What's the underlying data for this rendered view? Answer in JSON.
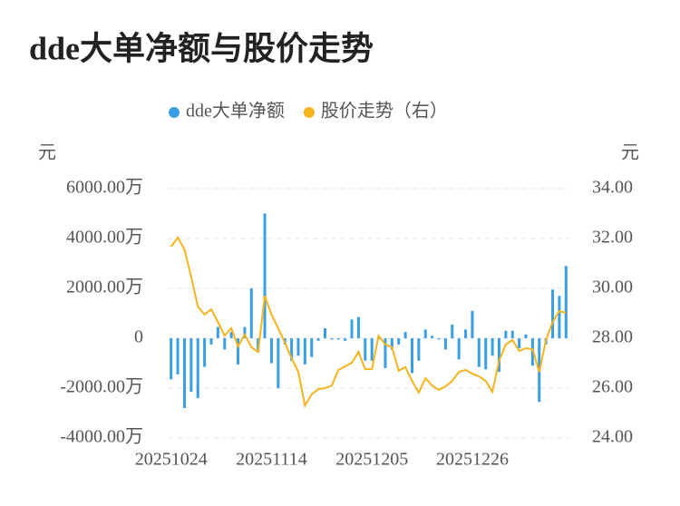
{
  "chart_data": {
    "type": "bar_line",
    "title": "dde大单净额与股价走势",
    "y_label": "元",
    "y2_label": "元",
    "categories": [
      "20251024",
      null,
      null,
      null,
      null,
      null,
      null,
      null,
      null,
      null,
      null,
      null,
      null,
      null,
      null,
      "20251114",
      null,
      null,
      null,
      null,
      null,
      null,
      null,
      null,
      null,
      null,
      null,
      null,
      null,
      null,
      "20251205",
      null,
      null,
      null,
      null,
      null,
      null,
      null,
      null,
      null,
      null,
      null,
      null,
      null,
      null,
      "20251226",
      null,
      null,
      null,
      null,
      null,
      null,
      null,
      null,
      null,
      null,
      null,
      null,
      null,
      null
    ],
    "series": [
      {
        "name": "dde大单净额",
        "color": "#3a9ee4",
        "kind": "bar",
        "axis": "y",
        "values": [
          -1650,
          -1450,
          -2800,
          -2150,
          -2400,
          -1150,
          -250,
          450,
          -450,
          250,
          -1050,
          450,
          2000,
          -550,
          5000,
          -1000,
          -2000,
          -250,
          -900,
          -700,
          -1050,
          -750,
          -100,
          400,
          -50,
          -50,
          -100,
          750,
          850,
          -900,
          -900,
          -50,
          -1200,
          -450,
          -250,
          250,
          -1400,
          -900,
          350,
          100,
          -50,
          -450,
          550,
          -850,
          350,
          1100,
          -1150,
          -1250,
          -700,
          -1350,
          300,
          300,
          -400,
          150,
          -1100,
          -2550,
          -250,
          1950,
          1700,
          2900
        ]
      },
      {
        "name": "股价走势（右）",
        "color": "#f5b31c",
        "kind": "line",
        "axis": "y2",
        "values": [
          31.67,
          32.04,
          31.56,
          30.47,
          29.27,
          28.95,
          29.16,
          28.65,
          28.1,
          28.4,
          27.67,
          28.15,
          27.64,
          27.45,
          29.7,
          28.95,
          28.4,
          27.82,
          27.2,
          26.65,
          25.3,
          25.75,
          25.96,
          26.0,
          26.1,
          26.73,
          26.87,
          27.02,
          27.45,
          26.76,
          26.76,
          28.1,
          27.75,
          27.64,
          26.7,
          26.84,
          26.29,
          25.82,
          26.4,
          26.1,
          25.93,
          26.07,
          26.29,
          26.65,
          26.73,
          26.58,
          26.47,
          26.29,
          25.85,
          27.1,
          27.75,
          27.93,
          27.49,
          27.6,
          27.56,
          26.65,
          27.93,
          28.65,
          29.09,
          29.02
        ]
      }
    ],
    "ylim": [
      -4000,
      6000
    ],
    "yticks": [
      {
        "value": -4000,
        "label": "-4000.00万"
      },
      {
        "value": -2000,
        "label": "-2000.00万"
      },
      0,
      {
        "value": 2000,
        "label": "2000.00万"
      },
      {
        "value": 4000,
        "label": "4000.00万"
      },
      {
        "value": 6000,
        "label": "6000.00万"
      }
    ],
    "y2lim": [
      24,
      34
    ],
    "y2ticks": [
      {
        "value": 24,
        "label": "24.00"
      },
      {
        "value": 26,
        "label": "26.00"
      },
      {
        "value": 28,
        "label": "28.00"
      },
      {
        "value": 30,
        "label": "30.00"
      },
      {
        "value": 32,
        "label": "32.00"
      },
      {
        "value": 34,
        "label": "34.00"
      }
    ],
    "grid": true,
    "legend": "top"
  }
}
